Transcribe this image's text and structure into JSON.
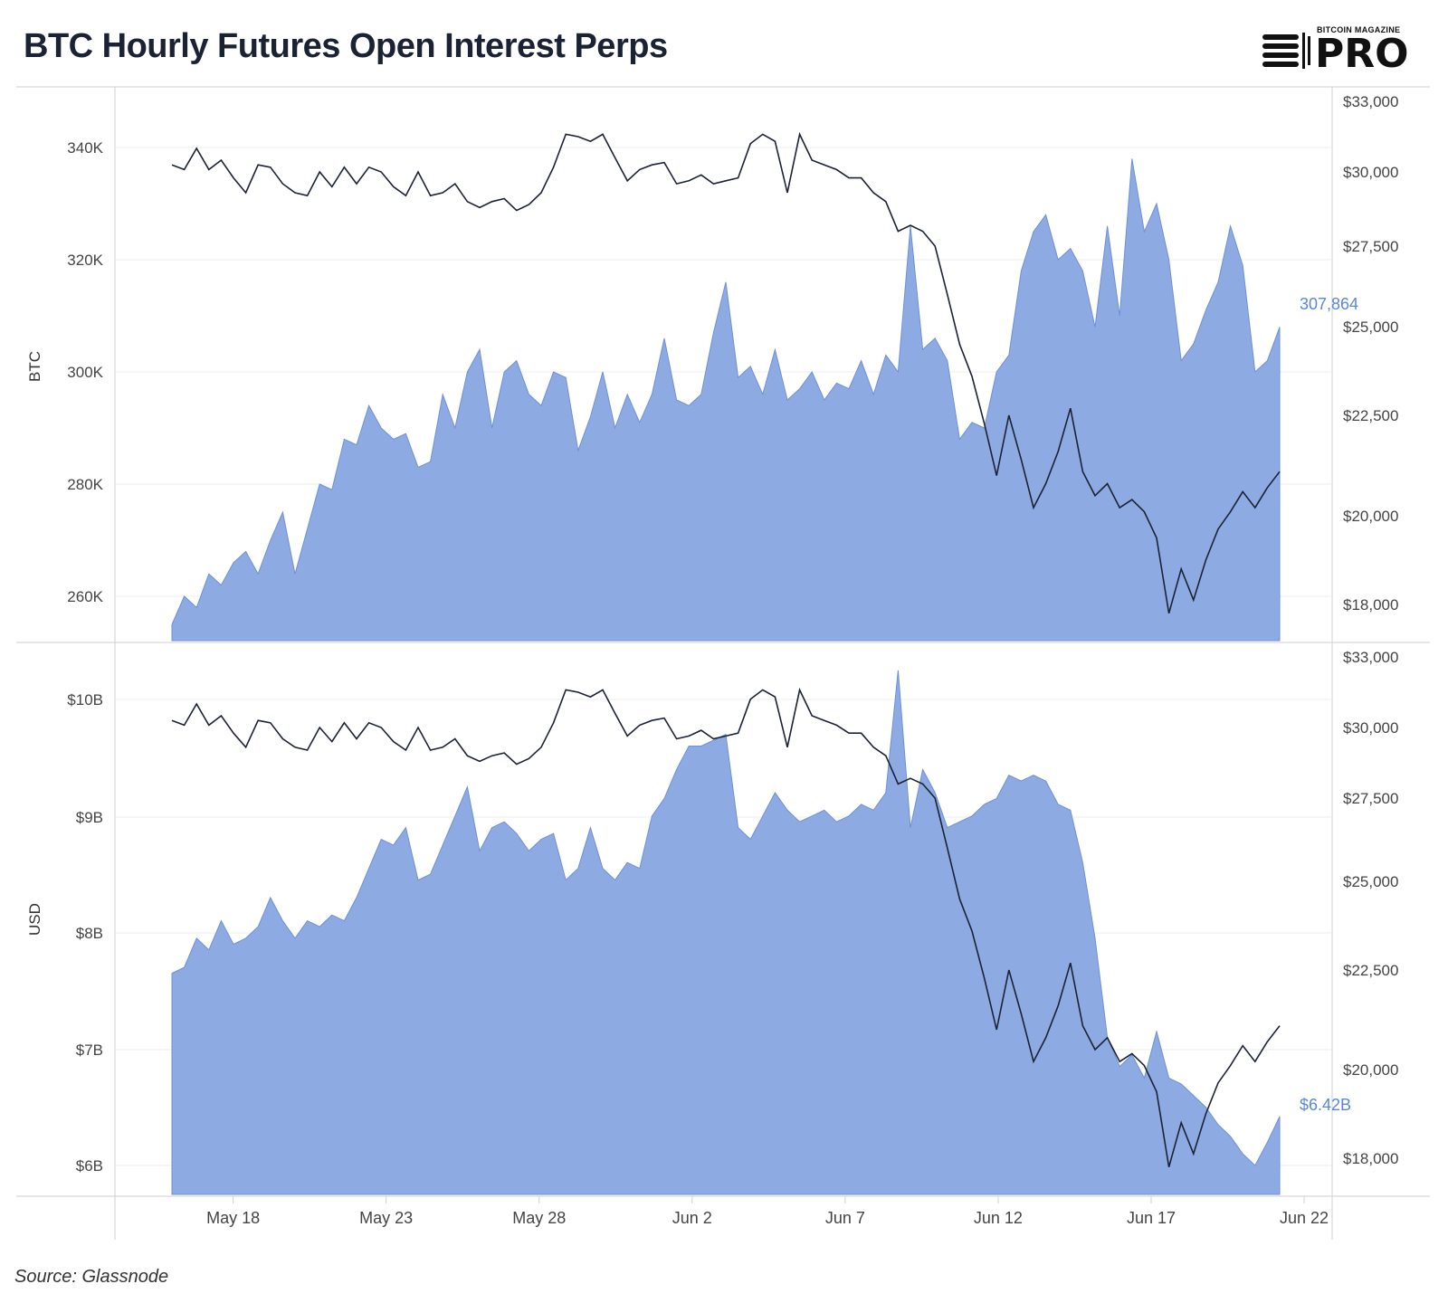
{
  "title": "BTC Hourly Futures Open Interest Perps",
  "logo": {
    "small_text": "BITCOIN MAGAZINE",
    "big_text": "PRO"
  },
  "source": "Source: Glassnode",
  "colors": {
    "area": "#8eaae3",
    "area_stroke": "#6f90d8",
    "price_line": "#1b2234",
    "label_blue": "#5b86d9",
    "grid": "#eeeeee"
  },
  "x_axis": {
    "ticks": [
      {
        "label": "May 18",
        "day": 18
      },
      {
        "label": "May 23",
        "day": 23
      },
      {
        "label": "May 28",
        "day": 28
      },
      {
        "label": "Jun 2",
        "day": 33
      },
      {
        "label": "Jun 7",
        "day": 38
      },
      {
        "label": "Jun 12",
        "day": 43
      },
      {
        "label": "Jun 17",
        "day": 48
      },
      {
        "label": "Jun 22",
        "day": 53
      }
    ]
  },
  "chart_data": [
    {
      "type": "area",
      "title": "",
      "ylabel": "BTC",
      "y_ticks": [
        "260K",
        "280K",
        "300K",
        "320K",
        "340K"
      ],
      "y2_ticks": [
        "$18,000",
        "$20,000",
        "$22,500",
        "$25,000",
        "$27,500",
        "$30,000",
        "$33,000"
      ],
      "last_value_label": "307,864",
      "series": [
        {
          "name": "",
          "kind": "area",
          "unit": "BTC",
          "x_start": "2022-05-16",
          "x_end": "2022-06-21",
          "values": [
            255000,
            260000,
            258000,
            264000,
            262000,
            266000,
            268000,
            264000,
            270000,
            275000,
            264000,
            272000,
            280000,
            279000,
            288000,
            287000,
            294000,
            290000,
            288000,
            289000,
            283000,
            284000,
            296000,
            290000,
            300000,
            304000,
            290000,
            300000,
            302000,
            296000,
            294000,
            300000,
            299000,
            286000,
            292000,
            300000,
            290000,
            296000,
            291000,
            296000,
            306000,
            295000,
            294000,
            296000,
            307000,
            316000,
            299000,
            301000,
            296000,
            304000,
            295000,
            297000,
            300000,
            295000,
            298000,
            297000,
            302000,
            296000,
            303000,
            300000,
            326000,
            304000,
            306000,
            302000,
            288000,
            291000,
            290000,
            300000,
            303000,
            318000,
            325000,
            328000,
            320000,
            322000,
            318000,
            308000,
            326000,
            310000,
            338000,
            325000,
            330000,
            320000,
            302000,
            305000,
            311000,
            316000,
            326000,
            319000,
            300000,
            302000,
            308000
          ],
          "max": 345000
        },
        {
          "name": "",
          "kind": "line",
          "unit": "USD",
          "axis": "right",
          "values": [
            30300,
            30100,
            31000,
            30100,
            30500,
            29800,
            29300,
            30300,
            30200,
            29600,
            29300,
            29200,
            30000,
            29500,
            30200,
            29600,
            30200,
            30000,
            29500,
            29200,
            30000,
            29200,
            29300,
            29600,
            29000,
            28800,
            29000,
            29100,
            28700,
            28900,
            29300,
            30200,
            31600,
            31500,
            31300,
            31600,
            30600,
            29700,
            30100,
            30300,
            30400,
            29600,
            29700,
            29900,
            29600,
            29700,
            29800,
            31200,
            31600,
            31300,
            29300,
            31600,
            30500,
            30300,
            30100,
            29800,
            29800,
            29300,
            29000,
            28000,
            28200,
            28000,
            27500,
            26000,
            24500,
            23600,
            22300,
            21000,
            22500,
            21400,
            20200,
            20800,
            21600,
            22700,
            21100,
            20500,
            20800,
            20200,
            20400,
            20100,
            19500,
            17800,
            18800,
            18100,
            19000,
            19700,
            20100,
            20600,
            20200,
            20700,
            21100
          ],
          "min": 17600,
          "max": 33000
        }
      ]
    },
    {
      "type": "area",
      "title": "",
      "ylabel": "USD",
      "y_ticks": [
        "$6B",
        "$7B",
        "$8B",
        "$9B",
        "$10B"
      ],
      "y2_ticks": [
        "$18,000",
        "$20,000",
        "$22,500",
        "$25,000",
        "$27,500",
        "$30,000",
        "$33,000"
      ],
      "last_value_label": "$6.42B",
      "series": [
        {
          "name": "",
          "kind": "area",
          "unit": "USD",
          "values": [
            7650,
            7700,
            7950,
            7850,
            8100,
            7900,
            7950,
            8050,
            8300,
            8100,
            7950,
            8100,
            8050,
            8150,
            8100,
            8300,
            8550,
            8800,
            8750,
            8900,
            8450,
            8500,
            8750,
            9000,
            9250,
            8700,
            8900,
            8950,
            8850,
            8700,
            8800,
            8850,
            8450,
            8550,
            8900,
            8550,
            8450,
            8600,
            8550,
            9000,
            9150,
            9400,
            9600,
            9600,
            9650,
            9700,
            8900,
            8800,
            9000,
            9200,
            9050,
            8950,
            9000,
            9050,
            8950,
            9000,
            9100,
            9050,
            9200,
            10250,
            8900,
            9400,
            9200,
            8900,
            8950,
            9000,
            9100,
            9150,
            9350,
            9300,
            9350,
            9300,
            9100,
            9050,
            8600,
            7950,
            7100,
            6850,
            6950,
            6750,
            7150,
            6750,
            6700,
            6600,
            6500,
            6350,
            6250,
            6100,
            6000,
            6200,
            6420
          ],
          "min": 5800,
          "max": 10300
        },
        {
          "name": "",
          "kind": "line",
          "unit": "USD",
          "axis": "right",
          "values": [
            30300,
            30100,
            31000,
            30100,
            30500,
            29800,
            29300,
            30300,
            30200,
            29600,
            29300,
            29200,
            30000,
            29500,
            30200,
            29600,
            30200,
            30000,
            29500,
            29200,
            30000,
            29200,
            29300,
            29600,
            29000,
            28800,
            29000,
            29100,
            28700,
            28900,
            29300,
            30200,
            31600,
            31500,
            31300,
            31600,
            30600,
            29700,
            30100,
            30300,
            30400,
            29600,
            29700,
            29900,
            29600,
            29700,
            29800,
            31200,
            31600,
            31300,
            29300,
            31600,
            30500,
            30300,
            30100,
            29800,
            29800,
            29300,
            29000,
            28000,
            28200,
            28000,
            27500,
            26000,
            24500,
            23600,
            22300,
            21000,
            22500,
            21400,
            20200,
            20800,
            21600,
            22700,
            21100,
            20500,
            20800,
            20200,
            20400,
            20100,
            19500,
            17800,
            18800,
            18100,
            19000,
            19700,
            20100,
            20600,
            20200,
            20700,
            21100
          ],
          "min": 17600,
          "max": 33000
        }
      ]
    }
  ]
}
